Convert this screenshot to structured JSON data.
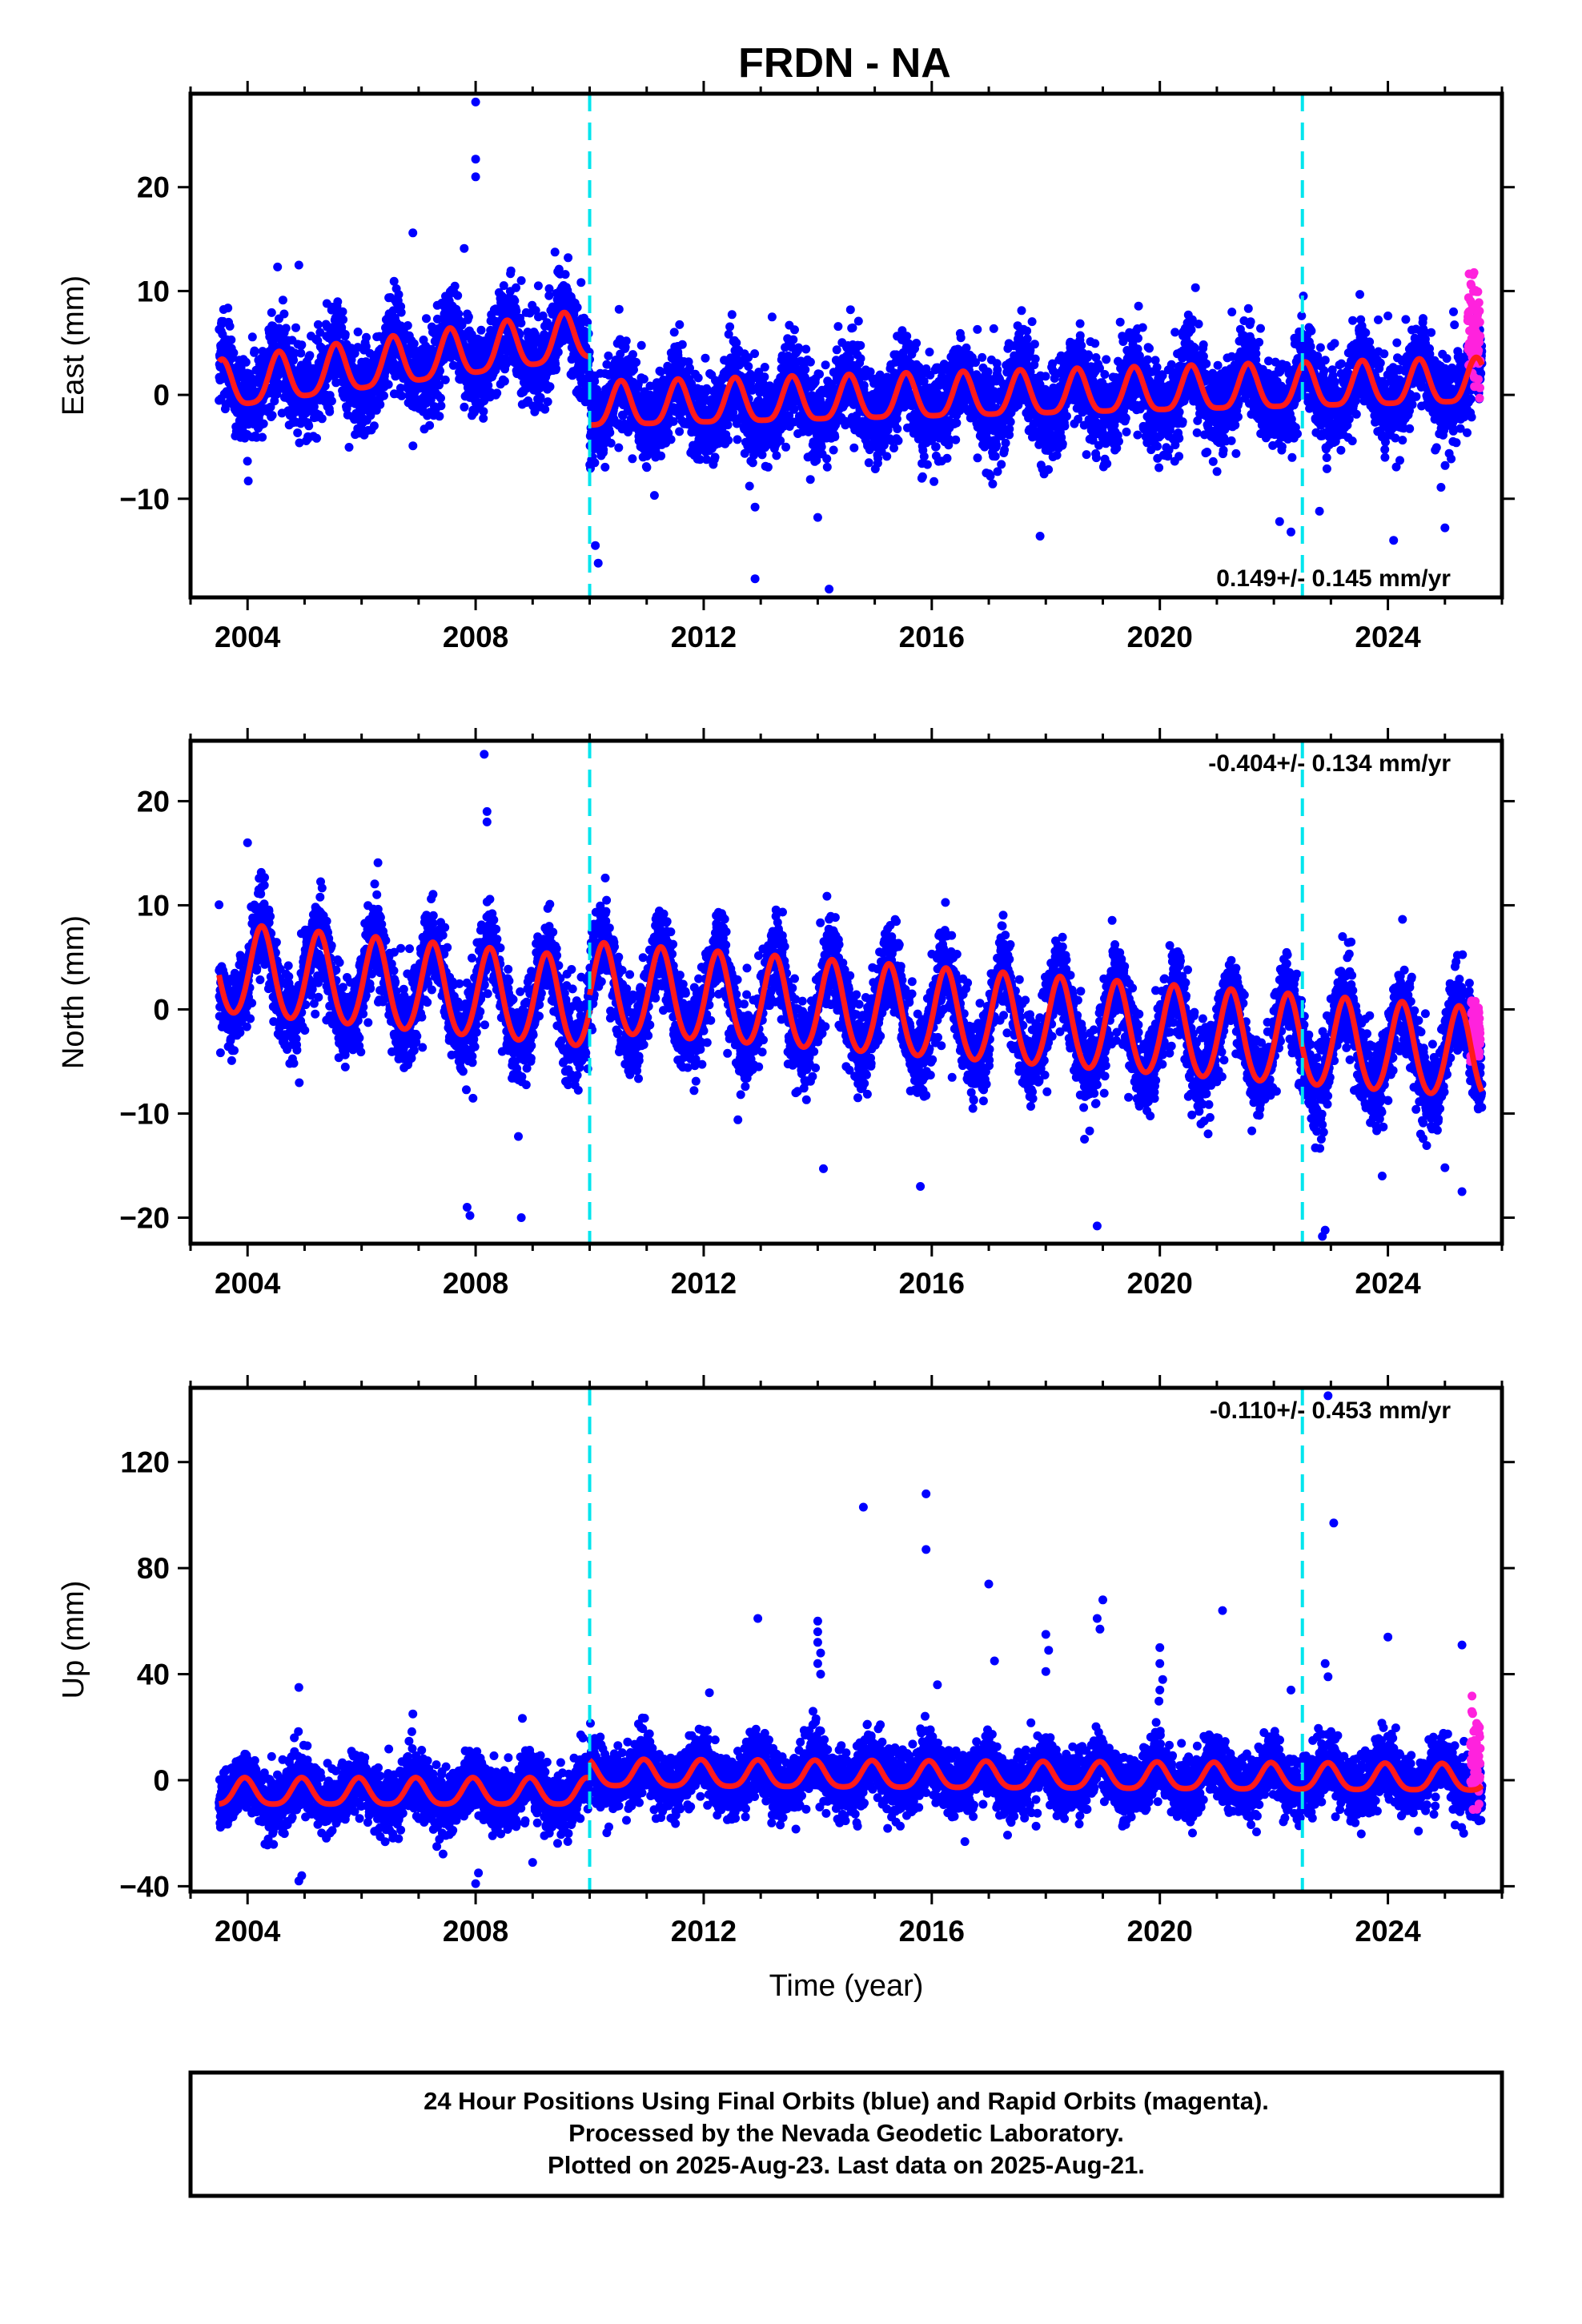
{
  "title": "FRDN - NA",
  "caption_lines": [
    "24 Hour Positions Using Final Orbits (blue) and Rapid Orbits (magenta).",
    "Processed by the Nevada Geodetic Laboratory.",
    "Plotted on 2025-Aug-23. Last data on 2025-Aug-21."
  ],
  "colors": {
    "final_orbits": "#0000ff",
    "rapid_orbits": "#ff22dd",
    "model_fit": "#ff1a1a",
    "event_lines": "#00e5ee",
    "frame": "#000000"
  },
  "chart_data": [
    {
      "type": "scatter",
      "ylabel": "East (mm)",
      "xlabel": "",
      "xlim": [
        2003.0,
        2026.0
      ],
      "ylim": [
        -19.5,
        29.0
      ],
      "x_ticks": [
        2004,
        2008,
        2012,
        2016,
        2020,
        2024
      ],
      "y_ticks": [
        -10,
        0,
        10,
        20
      ],
      "y_tick_labels": [
        "−10",
        "0",
        "10",
        "20"
      ],
      "rate_label": "0.149+/- 0.145 mm/yr",
      "rate_label_position": "bottom-right",
      "event_lines_x": [
        2010.0,
        2022.5
      ],
      "model": {
        "segments": [
          {
            "start": 2003.5,
            "end": 2010.0,
            "offset": 0.6,
            "trend": 0.75,
            "ref": 2003.5,
            "amp_annual": 2.3,
            "phase_annual": 0.55,
            "amp_semiannual": 0.5
          },
          {
            "start": 2010.0,
            "end": 2025.65,
            "offset": -1.3,
            "trend": 0.149,
            "ref": 2010.0,
            "amp_annual": 2.1,
            "phase_annual": 0.55,
            "amp_semiannual": 0.5
          }
        ]
      },
      "final_scatter_sigma": 2.1,
      "rapid_range": [
        2025.4,
        2025.62
      ],
      "rapid_center": 6.0,
      "rapid_sigma": 2.5,
      "outliers": [
        {
          "x": 2008.0,
          "y": 28.2
        },
        {
          "x": 2008.0,
          "y": 22.7
        },
        {
          "x": 2008.0,
          "y": 21.0
        },
        {
          "x": 2006.9,
          "y": 15.6
        },
        {
          "x": 2004.9,
          "y": 12.5
        },
        {
          "x": 2007.8,
          "y": 14.1
        },
        {
          "x": 2008.8,
          "y": 11.0
        },
        {
          "x": 2009.1,
          "y": 10.5
        },
        {
          "x": 2010.1,
          "y": -14.5
        },
        {
          "x": 2010.15,
          "y": -16.2
        },
        {
          "x": 2012.9,
          "y": -17.7
        },
        {
          "x": 2014.2,
          "y": -18.7
        },
        {
          "x": 2014.0,
          "y": -11.8
        },
        {
          "x": 2012.9,
          "y": -10.8
        },
        {
          "x": 2022.1,
          "y": -12.2
        },
        {
          "x": 2022.3,
          "y": -13.2
        },
        {
          "x": 2024.1,
          "y": -14.0
        },
        {
          "x": 2025.0,
          "y": -12.8
        },
        {
          "x": 2024.0,
          "y": 7.6
        },
        {
          "x": 2013.2,
          "y": 7.5
        },
        {
          "x": 2016.8,
          "y": 6.3
        },
        {
          "x": 2025.15,
          "y": 8.0
        },
        {
          "x": 2017.9,
          "y": -13.6
        },
        {
          "x": 2022.8,
          "y": -11.2
        }
      ]
    },
    {
      "type": "scatter",
      "ylabel": "North (mm)",
      "xlabel": "",
      "xlim": [
        2003.0,
        2026.0
      ],
      "ylim": [
        -22.5,
        25.8
      ],
      "x_ticks": [
        2004,
        2008,
        2012,
        2016,
        2020,
        2024
      ],
      "y_ticks": [
        -20,
        -10,
        0,
        10,
        20
      ],
      "y_tick_labels": [
        "−20",
        "−10",
        "0",
        "10",
        "20"
      ],
      "rate_label": "-0.404+/- 0.134 mm/yr",
      "rate_label_position": "top-right",
      "event_lines_x": [
        2010.0,
        2022.5
      ],
      "model": {
        "segments": [
          {
            "start": 2003.5,
            "end": 2010.0,
            "offset": 3.7,
            "trend": -0.52,
            "ref": 2003.5,
            "amp_annual": 4.3,
            "phase_annual": 0.25,
            "amp_semiannual": 0.4
          },
          {
            "start": 2010.0,
            "end": 2025.65,
            "offset": 1.8,
            "trend": -0.404,
            "ref": 2010.0,
            "amp_annual": 4.3,
            "phase_annual": 0.25,
            "amp_semiannual": 0.4
          }
        ]
      },
      "final_scatter_sigma": 2.0,
      "rapid_range": [
        2025.45,
        2025.62
      ],
      "rapid_center": -1.8,
      "rapid_sigma": 1.4,
      "outliers": [
        {
          "x": 2008.15,
          "y": 24.5
        },
        {
          "x": 2008.2,
          "y": 19.0
        },
        {
          "x": 2008.2,
          "y": 18.0
        },
        {
          "x": 2004.0,
          "y": 16.0
        },
        {
          "x": 2007.85,
          "y": -19.0
        },
        {
          "x": 2007.9,
          "y": -19.8
        },
        {
          "x": 2008.8,
          "y": -20.0
        },
        {
          "x": 2008.75,
          "y": -12.2
        },
        {
          "x": 2018.9,
          "y": -20.8
        },
        {
          "x": 2022.9,
          "y": -21.2
        },
        {
          "x": 2022.85,
          "y": -21.8
        },
        {
          "x": 2015.8,
          "y": -17.0
        },
        {
          "x": 2025.3,
          "y": -17.5
        },
        {
          "x": 2025.0,
          "y": -15.2
        },
        {
          "x": 2023.9,
          "y": -16.0
        },
        {
          "x": 2014.1,
          "y": -15.3
        },
        {
          "x": 2003.7,
          "y": -3.0
        },
        {
          "x": 2012.6,
          "y": -10.6
        }
      ]
    },
    {
      "type": "scatter",
      "ylabel": "Up (mm)",
      "xlabel": "Time (year)",
      "xlim": [
        2003.0,
        2026.0
      ],
      "ylim": [
        -42.0,
        148.0
      ],
      "x_ticks": [
        2004,
        2008,
        2012,
        2016,
        2020,
        2024
      ],
      "y_ticks": [
        -40,
        0,
        40,
        80,
        120
      ],
      "y_tick_labels": [
        "−40",
        "0",
        "40",
        "80",
        "120"
      ],
      "rate_label": "-0.110+/- 0.453 mm/yr",
      "rate_label_position": "top-right",
      "event_lines_x": [
        2010.0,
        2022.5
      ],
      "model": {
        "segments": [
          {
            "start": 2003.5,
            "end": 2010.0,
            "offset": -5.0,
            "trend": 0.0,
            "ref": 2003.5,
            "amp_annual": 5.0,
            "phase_annual": 0.95,
            "amp_semiannual": 1.0
          },
          {
            "start": 2010.0,
            "end": 2025.65,
            "offset": 2.0,
            "trend": -0.11,
            "ref": 2010.0,
            "amp_annual": 5.0,
            "phase_annual": 0.95,
            "amp_semiannual": 1.0
          }
        ]
      },
      "final_scatter_sigma": 5.5,
      "rapid_range": [
        2025.45,
        2025.62
      ],
      "rapid_center": 9.0,
      "rapid_sigma": 8.0,
      "outliers": [
        {
          "x": 2014.8,
          "y": 103.0
        },
        {
          "x": 2015.9,
          "y": 108.0
        },
        {
          "x": 2015.9,
          "y": 87.0
        },
        {
          "x": 2022.95,
          "y": 145.0
        },
        {
          "x": 2023.05,
          "y": 97.0
        },
        {
          "x": 2017.0,
          "y": 74.0
        },
        {
          "x": 2019.0,
          "y": 68.0
        },
        {
          "x": 2018.9,
          "y": 61.0
        },
        {
          "x": 2018.95,
          "y": 57.0
        },
        {
          "x": 2021.1,
          "y": 64.0
        },
        {
          "x": 2012.95,
          "y": 61.0
        },
        {
          "x": 2014.0,
          "y": 60.0
        },
        {
          "x": 2014.0,
          "y": 56.0
        },
        {
          "x": 2014.0,
          "y": 52.0
        },
        {
          "x": 2014.05,
          "y": 48.0
        },
        {
          "x": 2014.0,
          "y": 44.0
        },
        {
          "x": 2014.05,
          "y": 40.0
        },
        {
          "x": 2024.0,
          "y": 54.0
        },
        {
          "x": 2025.3,
          "y": 51.0
        },
        {
          "x": 2020.0,
          "y": 50.0
        },
        {
          "x": 2020.0,
          "y": 44.0
        },
        {
          "x": 2020.05,
          "y": 38.0
        },
        {
          "x": 2020.0,
          "y": 34.0
        },
        {
          "x": 2018.0,
          "y": 55.0
        },
        {
          "x": 2018.05,
          "y": 49.0
        },
        {
          "x": 2018.0,
          "y": 41.0
        },
        {
          "x": 2016.1,
          "y": 36.0
        },
        {
          "x": 2017.1,
          "y": 45.0
        },
        {
          "x": 2022.9,
          "y": 44.0
        },
        {
          "x": 2022.95,
          "y": 39.0
        },
        {
          "x": 2004.9,
          "y": 35.0
        },
        {
          "x": 2004.9,
          "y": -38.0
        },
        {
          "x": 2004.95,
          "y": -36.0
        },
        {
          "x": 2008.0,
          "y": -39.0
        },
        {
          "x": 2008.05,
          "y": -35.0
        },
        {
          "x": 2009.0,
          "y": -31.0
        },
        {
          "x": 2006.9,
          "y": 25.0
        },
        {
          "x": 2012.1,
          "y": 33.0
        },
        {
          "x": 2022.3,
          "y": 34.0
        }
      ]
    }
  ]
}
